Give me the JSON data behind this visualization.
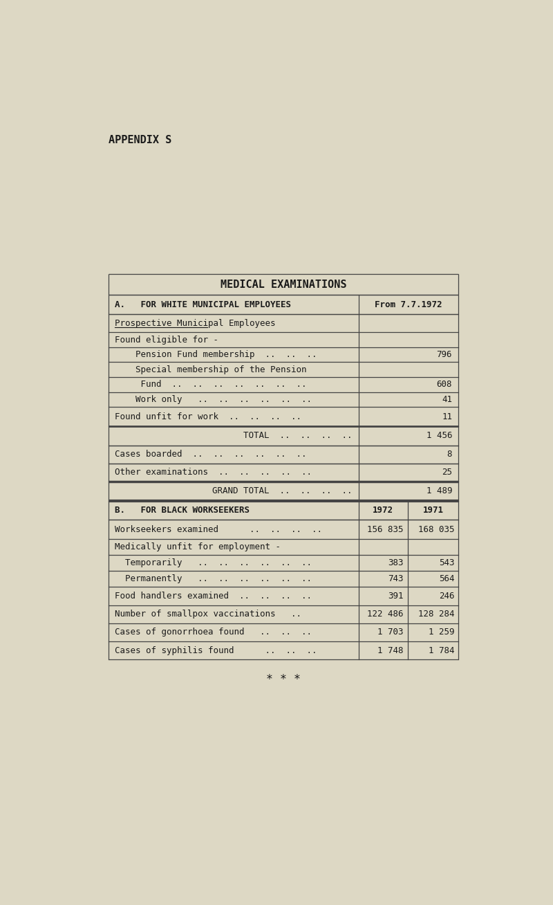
{
  "bg_color": "#ddd8c4",
  "appendix_label": "APPENDIX S",
  "title": "MEDICAL EXAMINATIONS",
  "section_a_header": "A.   FOR WHITE MUNICIPAL EMPLOYEES",
  "section_a_col": "From 7.7.1972",
  "section_b_header": "B.   FOR BLACK WORKSEEKERS",
  "section_b_col1": "1972",
  "section_b_col2": "1971",
  "rows_b": [
    {
      "label": "Workseekers examined      ..  ..  ..  ..",
      "val1": "156 835",
      "val2": "168 035"
    },
    {
      "label": "Medically unfit for employment -",
      "val1": "",
      "val2": ""
    },
    {
      "label": "  Temporarily   ..  ..  ..  ..  ..  ..",
      "val1": "383",
      "val2": "543"
    },
    {
      "label": "  Permanently   ..  ..  ..  ..  ..  ..",
      "val1": "743",
      "val2": "564"
    },
    {
      "label": "Food handlers examined  ..  ..  ..  ..",
      "val1": "391",
      "val2": "246"
    },
    {
      "label": "Number of smallpox vaccinations   ..",
      "val1": "122 486",
      "val2": "128 284"
    },
    {
      "label": "Cases of gonorrhoea found   ..  ..  ..",
      "val1": "1 703",
      "val2": "1 259"
    },
    {
      "label": "Cases of syphilis found      ..  ..  ..",
      "val1": "1 748",
      "val2": "1 784"
    }
  ],
  "stars": "* * *",
  "font_family": "monospace",
  "text_color": "#1a1a1a",
  "table_border_color": "#444444"
}
